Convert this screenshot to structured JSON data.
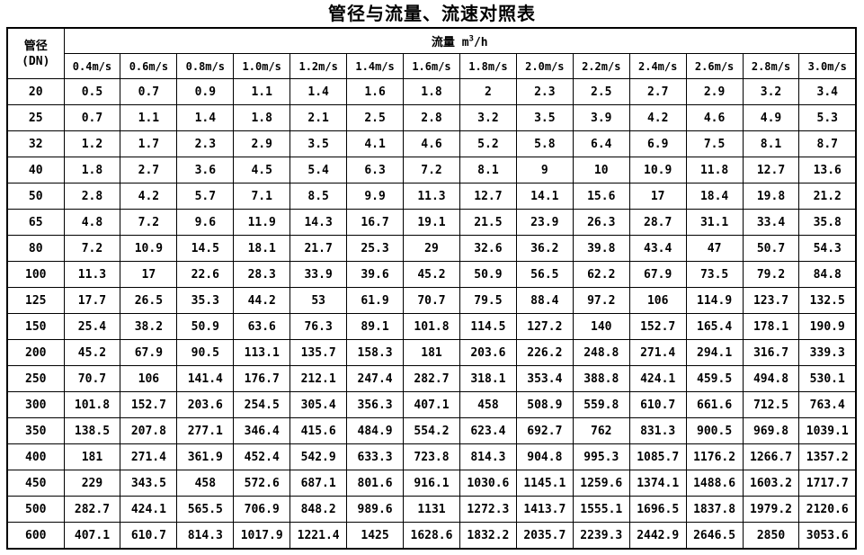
{
  "title": "管径与流量、流速对照表",
  "header": {
    "dn_line1": "管径",
    "dn_line2": "(DN)",
    "flow_label": "流量 m",
    "flow_sup": "3",
    "flow_unit": "/h"
  },
  "speeds": [
    "0.4m/s",
    "0.6m/s",
    "0.8m/s",
    "1.0m/s",
    "1.2m/s",
    "1.4m/s",
    "1.6m/s",
    "1.8m/s",
    "2.0m/s",
    "2.2m/s",
    "2.4m/s",
    "2.6m/s",
    "2.8m/s",
    "3.0m/s"
  ],
  "rows": [
    {
      "dn": "20",
      "values": [
        "0.5",
        "0.7",
        "0.9",
        "1.1",
        "1.4",
        "1.6",
        "1.8",
        "2",
        "2.3",
        "2.5",
        "2.7",
        "2.9",
        "3.2",
        "3.4"
      ]
    },
    {
      "dn": "25",
      "values": [
        "0.7",
        "1.1",
        "1.4",
        "1.8",
        "2.1",
        "2.5",
        "2.8",
        "3.2",
        "3.5",
        "3.9",
        "4.2",
        "4.6",
        "4.9",
        "5.3"
      ]
    },
    {
      "dn": "32",
      "values": [
        "1.2",
        "1.7",
        "2.3",
        "2.9",
        "3.5",
        "4.1",
        "4.6",
        "5.2",
        "5.8",
        "6.4",
        "6.9",
        "7.5",
        "8.1",
        "8.7"
      ]
    },
    {
      "dn": "40",
      "values": [
        "1.8",
        "2.7",
        "3.6",
        "4.5",
        "5.4",
        "6.3",
        "7.2",
        "8.1",
        "9",
        "10",
        "10.9",
        "11.8",
        "12.7",
        "13.6"
      ]
    },
    {
      "dn": "50",
      "values": [
        "2.8",
        "4.2",
        "5.7",
        "7.1",
        "8.5",
        "9.9",
        "11.3",
        "12.7",
        "14.1",
        "15.6",
        "17",
        "18.4",
        "19.8",
        "21.2"
      ]
    },
    {
      "dn": "65",
      "values": [
        "4.8",
        "7.2",
        "9.6",
        "11.9",
        "14.3",
        "16.7",
        "19.1",
        "21.5",
        "23.9",
        "26.3",
        "28.7",
        "31.1",
        "33.4",
        "35.8"
      ]
    },
    {
      "dn": "80",
      "values": [
        "7.2",
        "10.9",
        "14.5",
        "18.1",
        "21.7",
        "25.3",
        "29",
        "32.6",
        "36.2",
        "39.8",
        "43.4",
        "47",
        "50.7",
        "54.3"
      ]
    },
    {
      "dn": "100",
      "values": [
        "11.3",
        "17",
        "22.6",
        "28.3",
        "33.9",
        "39.6",
        "45.2",
        "50.9",
        "56.5",
        "62.2",
        "67.9",
        "73.5",
        "79.2",
        "84.8"
      ]
    },
    {
      "dn": "125",
      "values": [
        "17.7",
        "26.5",
        "35.3",
        "44.2",
        "53",
        "61.9",
        "70.7",
        "79.5",
        "88.4",
        "97.2",
        "106",
        "114.9",
        "123.7",
        "132.5"
      ]
    },
    {
      "dn": "150",
      "values": [
        "25.4",
        "38.2",
        "50.9",
        "63.6",
        "76.3",
        "89.1",
        "101.8",
        "114.5",
        "127.2",
        "140",
        "152.7",
        "165.4",
        "178.1",
        "190.9"
      ]
    },
    {
      "dn": "200",
      "values": [
        "45.2",
        "67.9",
        "90.5",
        "113.1",
        "135.7",
        "158.3",
        "181",
        "203.6",
        "226.2",
        "248.8",
        "271.4",
        "294.1",
        "316.7",
        "339.3"
      ]
    },
    {
      "dn": "250",
      "values": [
        "70.7",
        "106",
        "141.4",
        "176.7",
        "212.1",
        "247.4",
        "282.7",
        "318.1",
        "353.4",
        "388.8",
        "424.1",
        "459.5",
        "494.8",
        "530.1"
      ]
    },
    {
      "dn": "300",
      "values": [
        "101.8",
        "152.7",
        "203.6",
        "254.5",
        "305.4",
        "356.3",
        "407.1",
        "458",
        "508.9",
        "559.8",
        "610.7",
        "661.6",
        "712.5",
        "763.4"
      ]
    },
    {
      "dn": "350",
      "values": [
        "138.5",
        "207.8",
        "277.1",
        "346.4",
        "415.6",
        "484.9",
        "554.2",
        "623.4",
        "692.7",
        "762",
        "831.3",
        "900.5",
        "969.8",
        "1039.1"
      ]
    },
    {
      "dn": "400",
      "values": [
        "181",
        "271.4",
        "361.9",
        "452.4",
        "542.9",
        "633.3",
        "723.8",
        "814.3",
        "904.8",
        "995.3",
        "1085.7",
        "1176.2",
        "1266.7",
        "1357.2"
      ]
    },
    {
      "dn": "450",
      "values": [
        "229",
        "343.5",
        "458",
        "572.6",
        "687.1",
        "801.6",
        "916.1",
        "1030.6",
        "1145.1",
        "1259.6",
        "1374.1",
        "1488.6",
        "1603.2",
        "1717.7"
      ]
    },
    {
      "dn": "500",
      "values": [
        "282.7",
        "424.1",
        "565.5",
        "706.9",
        "848.2",
        "989.6",
        "1131",
        "1272.3",
        "1413.7",
        "1555.1",
        "1696.5",
        "1837.8",
        "1979.2",
        "2120.6"
      ]
    },
    {
      "dn": "600",
      "values": [
        "407.1",
        "610.7",
        "814.3",
        "1017.9",
        "1221.4",
        "1425",
        "1628.6",
        "1832.2",
        "2035.7",
        "2239.3",
        "2442.9",
        "2646.5",
        "2850",
        "3053.6"
      ]
    }
  ]
}
